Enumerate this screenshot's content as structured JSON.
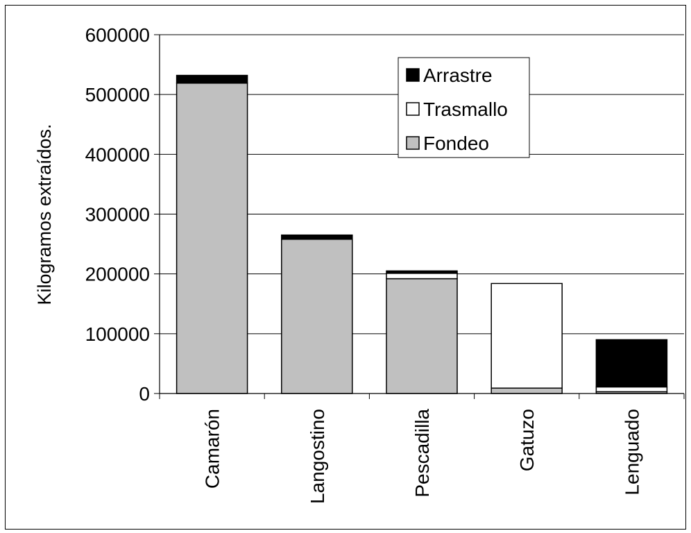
{
  "chart_data": {
    "type": "bar",
    "stacked": true,
    "categories": [
      "Camarón",
      "Langostino",
      "Pescadilla",
      "Gatuzo",
      "Lenguado"
    ],
    "series": [
      {
        "name": "Fondeo",
        "color": "#c0c0c0",
        "values": [
          519000,
          258000,
          192000,
          9000,
          3000
        ]
      },
      {
        "name": "Trasmallo",
        "color": "#ffffff",
        "values": [
          0,
          0,
          9000,
          175000,
          8000
        ]
      },
      {
        "name": "Arrastre",
        "color": "#000000",
        "values": [
          13000,
          7000,
          4000,
          0,
          79000
        ]
      }
    ],
    "legend_order": [
      "Arrastre",
      "Trasmallo",
      "Fondeo"
    ],
    "legend_position": "top-right",
    "ylabel": "Kilogramos extraídos.",
    "xlabel": "",
    "ylim": [
      0,
      600000
    ],
    "yticks": [
      0,
      100000,
      200000,
      300000,
      400000,
      500000,
      600000
    ],
    "grid": true
  }
}
